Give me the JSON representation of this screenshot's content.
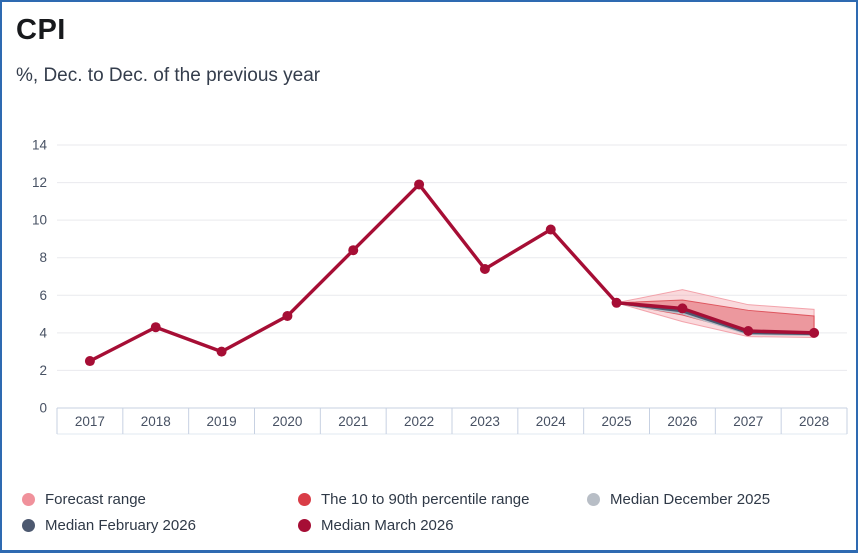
{
  "header": {
    "title": "CPI",
    "subtitle": "%, Dec. to Dec. of the previous year"
  },
  "chart_data": {
    "type": "line",
    "title": "CPI",
    "subtitle": "%, Dec. to Dec. of the previous year",
    "xlabel": "",
    "ylabel": "%",
    "categories": [
      "2017",
      "2018",
      "2019",
      "2020",
      "2021",
      "2022",
      "2023",
      "2024",
      "2025",
      "2026",
      "2027",
      "2028"
    ],
    "yticks": [
      0,
      2,
      4,
      6,
      8,
      10,
      12,
      14
    ],
    "ylim": [
      0,
      14
    ],
    "grid": true,
    "legend_position": "bottom",
    "series": [
      {
        "name": "Median March 2026",
        "color": "#a60e35",
        "marker": true,
        "values": [
          2.5,
          4.3,
          3.0,
          4.9,
          8.4,
          11.9,
          7.4,
          9.5,
          5.6,
          5.3,
          4.1,
          4.0
        ]
      },
      {
        "name": "Median February 2026",
        "color": "#4d5970",
        "marker": false,
        "values": [
          null,
          null,
          null,
          null,
          null,
          null,
          null,
          null,
          5.6,
          5.15,
          4.0,
          3.95
        ]
      },
      {
        "name": "Median December 2025",
        "color": "#b8bec6",
        "marker": false,
        "values": [
          null,
          null,
          null,
          null,
          null,
          null,
          null,
          null,
          5.6,
          5.05,
          3.95,
          3.9
        ]
      }
    ],
    "bands": [
      {
        "name": "Forecast range",
        "color": "#f0919b",
        "fill_opacity": 0.35,
        "upper": [
          null,
          null,
          null,
          null,
          null,
          null,
          null,
          null,
          5.6,
          6.3,
          5.5,
          5.25
        ],
        "lower": [
          null,
          null,
          null,
          null,
          null,
          null,
          null,
          null,
          5.6,
          4.6,
          3.8,
          3.75
        ]
      },
      {
        "name": "The 10 to 90th percentile range",
        "color": "#d93d47",
        "fill_opacity": 0.42,
        "upper": [
          null,
          null,
          null,
          null,
          null,
          null,
          null,
          null,
          5.6,
          5.75,
          5.2,
          4.9
        ],
        "lower": [
          null,
          null,
          null,
          null,
          null,
          null,
          null,
          null,
          5.6,
          4.95,
          4.0,
          3.9
        ]
      }
    ]
  },
  "legend": {
    "items": [
      {
        "label": "Forecast range",
        "color": "#f0919b"
      },
      {
        "label": "The 10 to 90th percentile range",
        "color": "#d93d47"
      },
      {
        "label": "Median December 2025",
        "color": "#b8bec6"
      },
      {
        "label": "Median February 2026",
        "color": "#4d5970"
      },
      {
        "label": "Median March 2026",
        "color": "#a60e35"
      }
    ]
  },
  "frame": {
    "border_color": "#2e6ab1"
  }
}
